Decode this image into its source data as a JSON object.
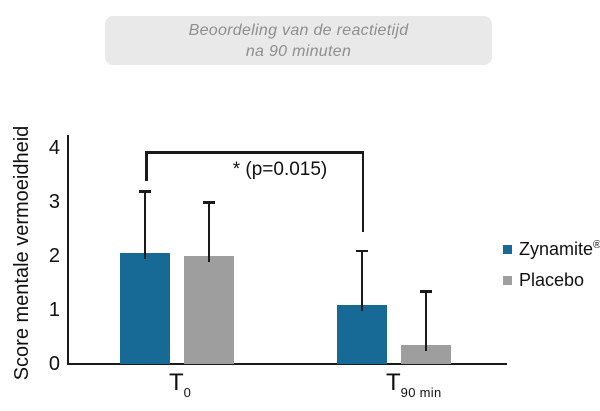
{
  "title_box": {
    "line1": "Beoordeling van de reactietijd",
    "line2": "na 90 minuten"
  },
  "chart_data": {
    "type": "bar",
    "title": "Beoordeling van de reactietijd na 90 minuten",
    "ylabel": "Score mentale vermoeidheid",
    "xlabel": "",
    "ylim": [
      0,
      4
    ],
    "yticks": [
      0,
      1,
      2,
      3,
      4
    ],
    "grid": false,
    "legend_position": "right",
    "categories": [
      "T0",
      "T90 min"
    ],
    "category_labels": [
      {
        "base": "T",
        "sub": "0"
      },
      {
        "base": "T",
        "sub": "90 min"
      }
    ],
    "series": [
      {
        "name": "Zynamite®+",
        "color": "#166a95",
        "values": [
          2.05,
          1.1
        ],
        "error_plus": [
          1.15,
          1.0
        ]
      },
      {
        "name": "Placebo",
        "color": "#9e9e9e",
        "values": [
          2.0,
          0.35
        ],
        "error_plus": [
          1.0,
          1.0
        ]
      }
    ],
    "annotation": {
      "text": "* (p=0.015)",
      "compares": [
        "Zynamite®+ T0",
        "Zynamite®+ T90 min"
      ]
    }
  },
  "legend": {
    "items": [
      {
        "pre": "Zynamite",
        "sup": "®",
        "post": "+",
        "color": "#166a95"
      },
      {
        "pre": "Placebo",
        "sup": "",
        "post": "",
        "color": "#9e9e9e"
      }
    ]
  },
  "colors": {
    "zynamite": "#166a95",
    "placebo": "#9e9e9e",
    "axis": "#1a1a1a",
    "title_box_bg": "#e9e9e9",
    "title_text": "#8e8e8e"
  }
}
